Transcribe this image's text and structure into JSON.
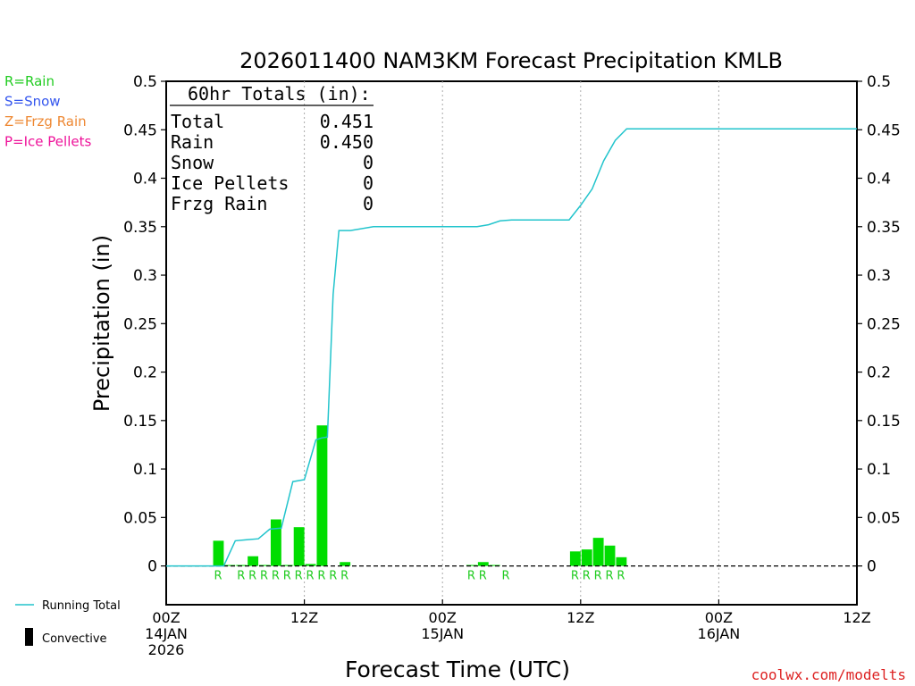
{
  "chart_data": {
    "type": "bar",
    "title": "2026011400 NAM3KM Forecast Precipitation KMLB",
    "xlabel": "Forecast Time (UTC)",
    "ylabel": "Precipitation (in)",
    "ylim": [
      -0.04,
      0.5
    ],
    "xlim_hours": [
      0,
      60
    ],
    "y_ticks": [
      "0.5",
      "0.45",
      "0.4",
      "0.35",
      "0.3",
      "0.25",
      "0.2",
      "0.15",
      "0.1",
      "0.05",
      "0"
    ],
    "y_tick_values": [
      0.5,
      0.45,
      0.4,
      0.35,
      0.3,
      0.25,
      0.2,
      0.15,
      0.1,
      0.05,
      0
    ],
    "x_ticks": [
      {
        "hour": 0,
        "lines": [
          "00Z",
          "14JAN",
          "2026"
        ]
      },
      {
        "hour": 12,
        "lines": [
          "12Z"
        ]
      },
      {
        "hour": 24,
        "lines": [
          "00Z",
          "15JAN"
        ]
      },
      {
        "hour": 36,
        "lines": [
          "12Z"
        ]
      },
      {
        "hour": 48,
        "lines": [
          "00Z",
          "16JAN"
        ]
      },
      {
        "hour": 60,
        "lines": [
          "12Z"
        ]
      }
    ],
    "gridlines_hours": [
      12,
      24,
      36,
      48
    ],
    "bars": {
      "name": "Hourly Precipitation (Rain)",
      "color": "#00dd00",
      "hours": [
        5,
        6,
        7,
        8,
        9,
        10,
        11,
        12,
        13,
        14,
        16,
        27,
        28,
        29,
        36,
        37,
        38,
        39,
        40
      ],
      "values": [
        0.026,
        0.001,
        0.001,
        0.01,
        0.001,
        0.048,
        0.001,
        0.04,
        0.002,
        0.145,
        0.004,
        0.001,
        0.004,
        0.001,
        0.015,
        0.017,
        0.029,
        0.021,
        0.009
      ]
    },
    "running_total": {
      "name": "Running Total",
      "color": "#22c4cc",
      "hours": [
        0,
        3,
        4,
        5,
        6,
        7,
        8,
        9,
        10,
        11,
        12,
        13,
        13.5,
        14,
        14.5,
        15,
        16,
        18,
        20,
        22,
        24,
        26,
        27,
        28,
        29,
        30,
        32,
        34,
        35,
        36,
        37,
        38,
        39,
        40,
        42,
        44,
        46,
        48,
        50,
        52,
        54,
        56,
        58,
        60
      ],
      "values": [
        0,
        0,
        0,
        0,
        0.026,
        0.027,
        0.028,
        0.038,
        0.039,
        0.087,
        0.089,
        0.13,
        0.132,
        0.133,
        0.28,
        0.346,
        0.346,
        0.35,
        0.35,
        0.35,
        0.35,
        0.35,
        0.35,
        0.352,
        0.356,
        0.357,
        0.357,
        0.357,
        0.357,
        0.372,
        0.389,
        0.418,
        0.439,
        0.451,
        0.451,
        0.451,
        0.451,
        0.451,
        0.451,
        0.451,
        0.451,
        0.451,
        0.451,
        0.451
      ]
    },
    "ptype_marks": {
      "label": "R",
      "hours": [
        5,
        7,
        8,
        9,
        10,
        11,
        12,
        13,
        14,
        15,
        16,
        27,
        28,
        30,
        36,
        37,
        38,
        39,
        40
      ]
    }
  },
  "totals_box": {
    "heading": "60hr Totals (in):",
    "rows": [
      {
        "label": "Total",
        "value": "0.451"
      },
      {
        "label": "Rain",
        "value": "0.450"
      },
      {
        "label": "Snow",
        "value": "0"
      },
      {
        "label": "Ice Pellets",
        "value": "0"
      },
      {
        "label": "Frzg Rain",
        "value": "0"
      }
    ]
  },
  "ptype_key": [
    {
      "text": "R=Rain",
      "color": "#22cc22"
    },
    {
      "text": "S=Snow",
      "color": "#3355ee"
    },
    {
      "text": "Z=Frzg Rain",
      "color": "#ee8833"
    },
    {
      "text": "P=Ice Pellets",
      "color": "#ee1199"
    }
  ],
  "legend": {
    "running_total": "Running Total",
    "convective": "Convective"
  },
  "credit": "coolwx.com/modelts",
  "colors": {
    "bar": "#00dd00",
    "line": "#22c4cc",
    "ptype_label": "#22cc22",
    "credit": "#dd2222",
    "axis": "#000000",
    "grid": "#aaaaaa"
  }
}
